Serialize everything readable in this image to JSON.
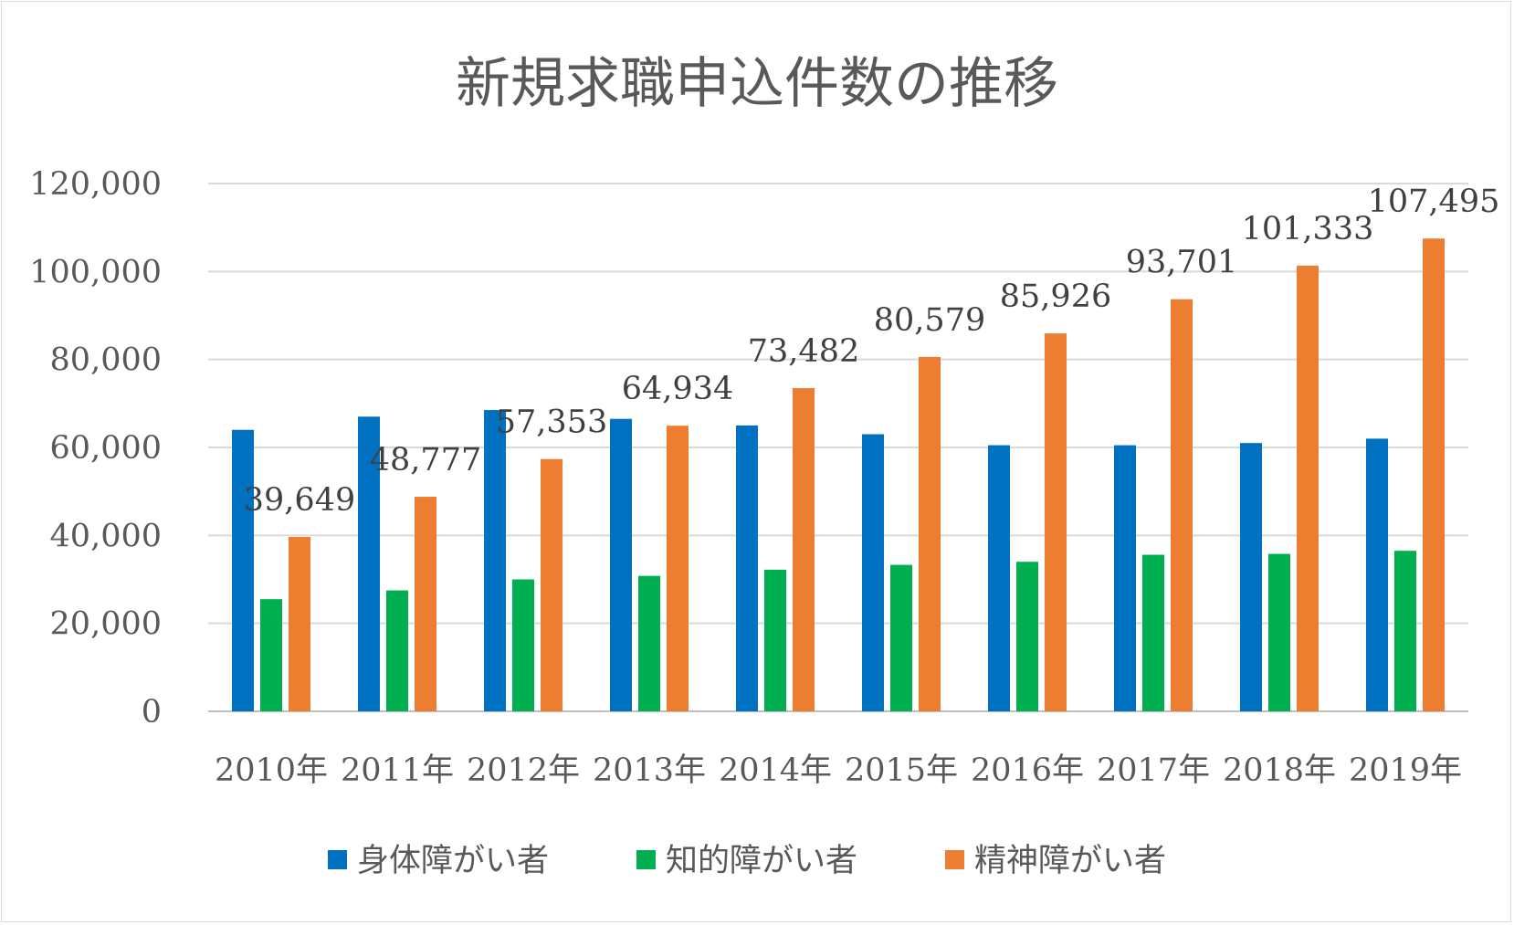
{
  "chart_data": {
    "type": "bar",
    "title": "新規求職申込件数の推移",
    "xlabel": "",
    "ylabel": "",
    "ylim": [
      0,
      120000
    ],
    "yticks": [
      "0",
      "20,000",
      "40,000",
      "60,000",
      "80,000",
      "100,000",
      "120,000"
    ],
    "grid": true,
    "legend_position": "bottom",
    "categories": [
      "2010年",
      "2011年",
      "2012年",
      "2013年",
      "2014年",
      "2015年",
      "2016年",
      "2017年",
      "2018年",
      "2019年"
    ],
    "series": [
      {
        "name": "身体障がい者",
        "color": "#0070c0",
        "values": [
          64000,
          67000,
          68500,
          66500,
          65000,
          63000,
          60500,
          60500,
          61000,
          62000
        ]
      },
      {
        "name": "知的障がい者",
        "color": "#00b050",
        "values": [
          25500,
          27500,
          30000,
          30800,
          32200,
          33300,
          34000,
          35600,
          35800,
          36500
        ]
      },
      {
        "name": "精神障がい者",
        "color": "#ed7d31",
        "values": [
          39649,
          48777,
          57353,
          64934,
          73482,
          80579,
          85926,
          93701,
          101333,
          107495
        ],
        "labels": [
          "39,649",
          "48,777",
          "57,353",
          "64,934",
          "73,482",
          "80,579",
          "85,926",
          "93,701",
          "101,333",
          "107,495"
        ]
      }
    ]
  }
}
